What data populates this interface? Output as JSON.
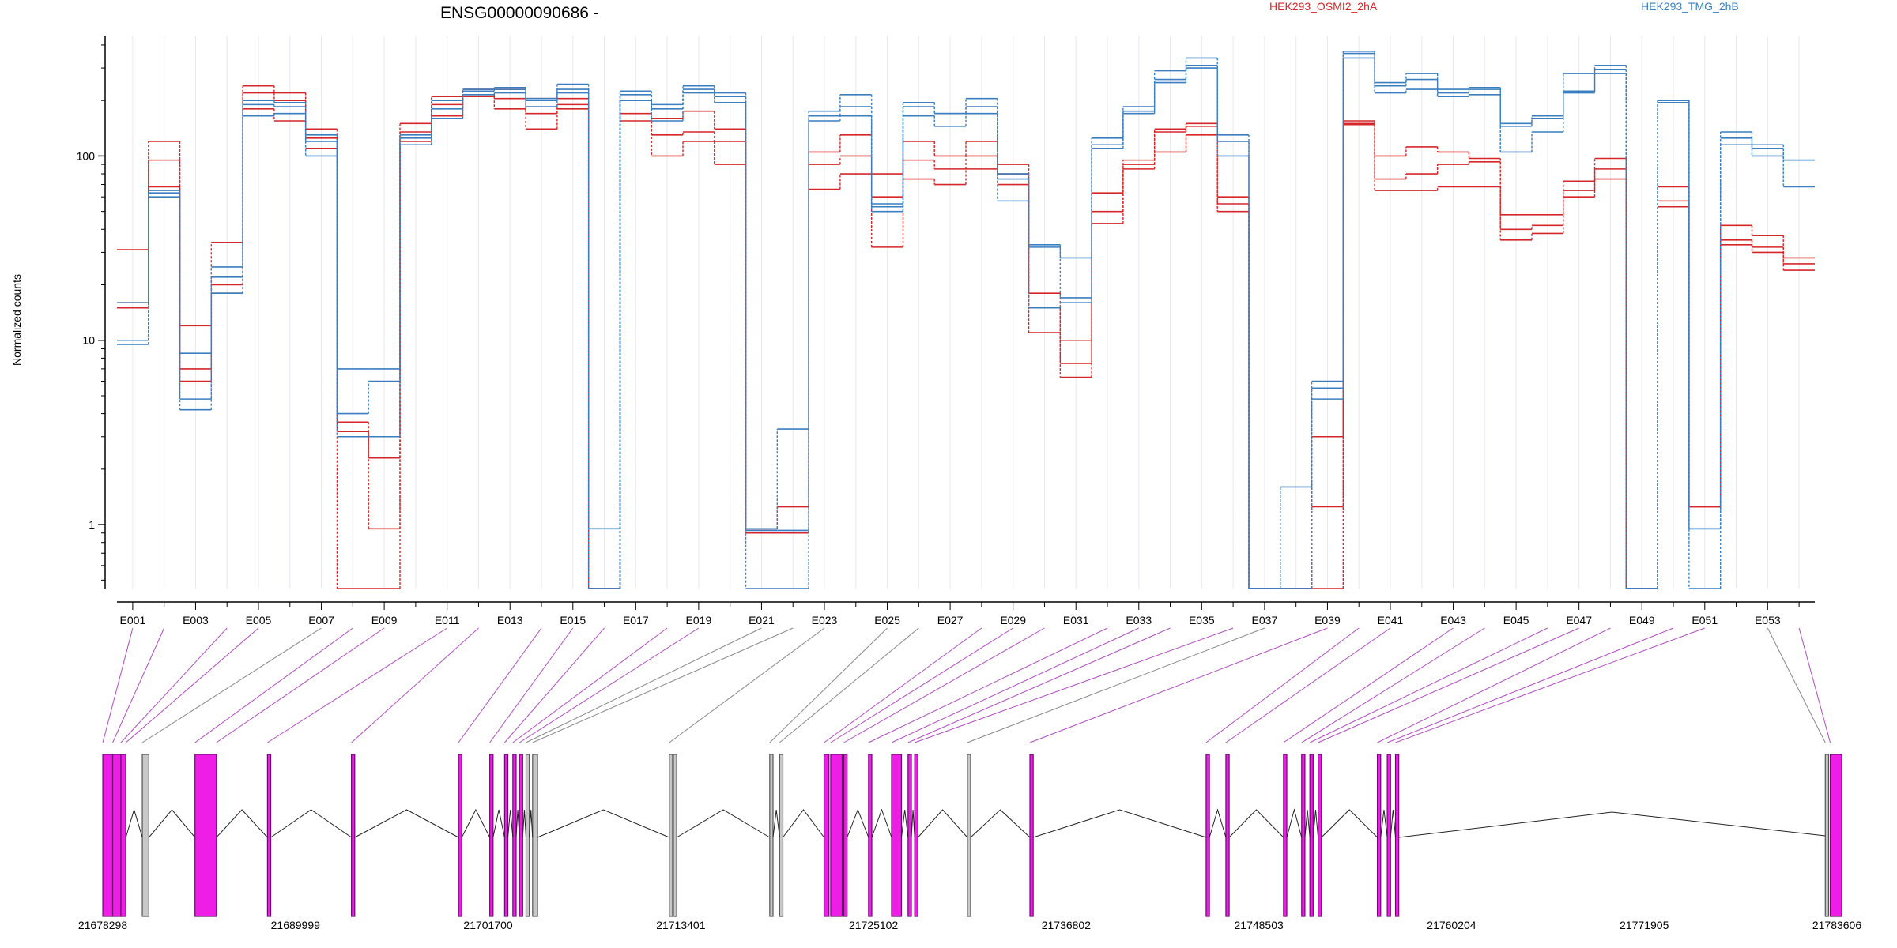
{
  "chart_data": {
    "type": "line",
    "title": "ENSG00000090686 -",
    "ylabel": "Normalized counts",
    "yscale": "log",
    "ylim": [
      0.45,
      450
    ],
    "yticks": [
      1,
      10,
      100
    ],
    "grid": "vertical",
    "legend_placement": "top-right",
    "legend": [
      {
        "label": "HEK293_OSMI2_2hA",
        "color": "#d62728"
      },
      {
        "label": "HEK293_TMG_2hB",
        "color": "#3a7fc1"
      }
    ],
    "exon_labels": [
      "E001",
      "E003",
      "E005",
      "E007",
      "E009",
      "E011",
      "E013",
      "E015",
      "E017",
      "E019",
      "E021",
      "E023",
      "E025",
      "E027",
      "E029",
      "E031",
      "E033",
      "E035",
      "E037",
      "E039",
      "E041",
      "E043",
      "E045",
      "E047",
      "E049",
      "E051",
      "E053"
    ],
    "exons": [
      "E001",
      "E002",
      "E003",
      "E004",
      "E005",
      "E006",
      "E007",
      "E008",
      "E009",
      "E010",
      "E011",
      "E012",
      "E013",
      "E014",
      "E015",
      "E016",
      "E017",
      "E018",
      "E019",
      "E020",
      "E021",
      "E022",
      "E023",
      "E024",
      "E025",
      "E026",
      "E027",
      "E028",
      "E029",
      "E030",
      "E031",
      "E032",
      "E033",
      "E034",
      "E035",
      "E036",
      "E037",
      "E038",
      "E039",
      "E040",
      "E041",
      "E042",
      "E043",
      "E044",
      "E045",
      "E046",
      "E047",
      "E048",
      "E049",
      "E050",
      "E051",
      "E052",
      "E053",
      "E054"
    ],
    "series": [
      {
        "name": "HEK293_OSMI2_2hA",
        "color": "#d62728",
        "values": [
          31,
          120,
          12,
          34,
          240,
          220,
          140,
          3.6,
          2.3,
          150,
          210,
          230,
          230,
          205,
          205,
          0.45,
          200,
          160,
          175,
          140,
          0.95,
          1.25,
          105,
          130,
          80,
          120,
          100,
          120,
          90,
          11,
          6.3,
          63,
          95,
          140,
          150,
          60,
          0.45,
          0.45,
          3,
          155,
          100,
          112,
          105,
          97,
          48,
          48,
          73,
          97,
          0.45,
          68,
          1.25,
          42,
          37,
          28
        ]
      },
      {
        "name": "HEK293_OSMI2_2hA",
        "color": "#d62728",
        "values": [
          16,
          95,
          7,
          20,
          220,
          200,
          125,
          3.2,
          0.95,
          135,
          190,
          215,
          205,
          170,
          190,
          0.45,
          170,
          130,
          135,
          120,
          0.95,
          1.25,
          90,
          100,
          60,
          95,
          85,
          100,
          80,
          18,
          10,
          50,
          90,
          135,
          145,
          55,
          0.45,
          0.45,
          1.25,
          150,
          75,
          80,
          90,
          93,
          40,
          42,
          65,
          85,
          0.45,
          57,
          1.25,
          35,
          32,
          26
        ]
      },
      {
        "name": "HEK293_OSMI2_2hA",
        "color": "#d62728",
        "values": [
          15,
          68,
          6,
          18,
          180,
          155,
          110,
          0.45,
          0.45,
          120,
          165,
          210,
          180,
          140,
          180,
          0.45,
          155,
          100,
          120,
          90,
          0.9,
          0.9,
          66,
          80,
          32,
          75,
          70,
          85,
          70,
          15,
          7.5,
          43,
          85,
          105,
          130,
          50,
          0.45,
          0.45,
          0.45,
          148,
          65,
          65,
          68,
          68,
          35,
          38,
          60,
          75,
          0.45,
          53,
          1.25,
          33,
          30,
          24
        ]
      },
      {
        "name": "HEK293_TMG_2hB",
        "color": "#3a7fc1",
        "values": [
          16,
          63,
          8.5,
          25,
          200,
          195,
          130,
          7,
          7,
          130,
          200,
          230,
          235,
          205,
          245,
          0.95,
          225,
          190,
          240,
          220,
          0.95,
          3.3,
          175,
          215,
          55,
          195,
          170,
          205,
          80,
          33,
          28,
          125,
          185,
          290,
          340,
          130,
          0.45,
          1.6,
          6,
          370,
          250,
          280,
          230,
          235,
          150,
          165,
          280,
          310,
          0.45,
          200,
          0.95,
          135,
          115,
          95
        ]
      },
      {
        "name": "HEK293_TMG_2hB",
        "color": "#3a7fc1",
        "values": [
          10,
          65,
          4.2,
          22,
          190,
          185,
          120,
          4,
          6,
          125,
          180,
          225,
          230,
          200,
          230,
          0.45,
          215,
          180,
          230,
          210,
          0.93,
          0.93,
          165,
          185,
          53,
          185,
          170,
          185,
          75,
          32,
          17,
          115,
          175,
          260,
          310,
          120,
          0.45,
          0.45,
          5.5,
          360,
          240,
          260,
          220,
          230,
          145,
          160,
          225,
          295,
          0.45,
          200,
          0.95,
          125,
          110,
          95
        ]
      },
      {
        "name": "HEK293_TMG_2hB",
        "color": "#3a7fc1",
        "values": [
          9.5,
          60,
          4.8,
          18,
          165,
          170,
          100,
          3,
          3,
          115,
          160,
          215,
          220,
          185,
          220,
          0.45,
          200,
          155,
          220,
          195,
          0.45,
          0.45,
          155,
          165,
          50,
          165,
          145,
          170,
          57,
          15,
          16,
          110,
          170,
          250,
          300,
          100,
          0.45,
          0.45,
          4.8,
          340,
          220,
          230,
          210,
          215,
          105,
          135,
          220,
          280,
          0.45,
          195,
          0.45,
          115,
          100,
          68
        ]
      }
    ],
    "genomic_coordinate_ticks": [
      21678298,
      21689999,
      21701700,
      21713401,
      21725102,
      21736802,
      21748503,
      21760204,
      21771905,
      21783606
    ]
  }
}
